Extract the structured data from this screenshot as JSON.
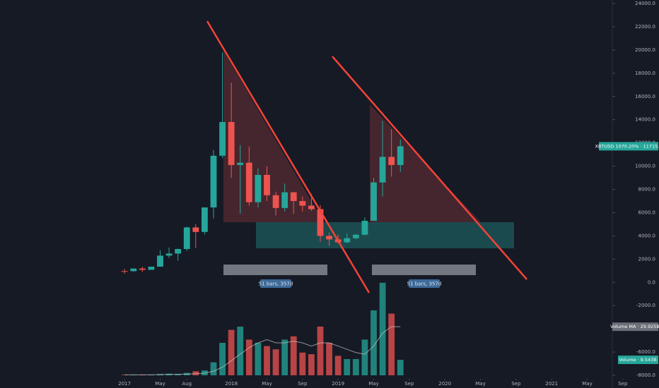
{
  "chart_data": {
    "type": "candlestick",
    "x": [
      "2017-01",
      "2017-02",
      "2017-03",
      "2017-04",
      "2017-05",
      "2017-06",
      "2017-07",
      "2017-08",
      "2017-09",
      "2017-10",
      "2017-11",
      "2017-12",
      "2018-01",
      "2018-02",
      "2018-03",
      "2018-04",
      "2018-05",
      "2018-06",
      "2018-07",
      "2018-08",
      "2018-09",
      "2018-10",
      "2018-11",
      "2018-12",
      "2019-01",
      "2019-02",
      "2019-03",
      "2019-04",
      "2019-05",
      "2019-06",
      "2019-07",
      "2019-08"
    ],
    "open": [
      970,
      965,
      1190,
      1080,
      1350,
      2300,
      2480,
      2870,
      4730,
      4340,
      6450,
      10900,
      13800,
      10100,
      10300,
      6900,
      9250,
      7500,
      6400,
      7750,
      7000,
      6600,
      6300,
      4000,
      3700,
      3450,
      3800,
      4100,
      5300,
      8600,
      10800,
      10100
    ],
    "high": [
      1150,
      1200,
      1350,
      1350,
      2760,
      3000,
      2900,
      4800,
      5000,
      6450,
      11400,
      19800,
      17200,
      11800,
      11700,
      9800,
      10000,
      7800,
      8500,
      7800,
      7400,
      7600,
      6650,
      4300,
      4100,
      4200,
      4150,
      5600,
      9000,
      13900,
      13200,
      12300
    ],
    "low": [
      750,
      920,
      890,
      1080,
      1350,
      2100,
      1850,
      2700,
      2950,
      4100,
      5500,
      10700,
      9000,
      5900,
      6600,
      6450,
      7000,
      5750,
      6100,
      5900,
      6100,
      6150,
      3500,
      3150,
      3350,
      3350,
      3700,
      4050,
      5300,
      7400,
      9100,
      9500
    ],
    "close": [
      965,
      1190,
      1080,
      1350,
      2300,
      2480,
      2870,
      4730,
      4340,
      6450,
      10900,
      13800,
      10100,
      10300,
      6900,
      9250,
      7500,
      6400,
      7750,
      7000,
      6600,
      6300,
      4000,
      3700,
      3450,
      3800,
      4100,
      5300,
      8600,
      10800,
      10100,
      11715.5
    ],
    "up_color": "#26a69a",
    "down_color": "#ef5350",
    "volume": {
      "name": "Volume",
      "label": "Volume · 9.543B",
      "values": [
        0.3,
        0.3,
        0.4,
        0.4,
        0.8,
        1.0,
        0.8,
        1.5,
        2.5,
        3,
        8,
        20,
        28,
        30,
        22,
        20,
        18,
        16,
        22,
        24,
        14,
        13,
        30,
        20,
        12,
        10,
        10,
        22,
        40,
        57,
        38,
        9.543
      ]
    },
    "volume_ma": {
      "name": "Volume MA",
      "label": "Volume MA · 29.925B",
      "color": "#c8c8c8",
      "values": [
        0.3,
        0.3,
        0.33,
        0.35,
        0.44,
        0.55,
        0.6,
        0.75,
        1.0,
        1.3,
        2.5,
        5,
        9,
        13,
        17,
        20,
        22,
        20,
        20,
        21,
        20,
        18,
        20,
        20,
        18,
        16,
        14,
        13,
        18,
        26,
        30,
        29.925
      ]
    },
    "volume_lim": [
      0,
      229
    ],
    "price_label": "XBTUSD 1070.20% · 11715.5",
    "annotations": [
      "51 bars, 357d",
      "51 bars, 357d"
    ],
    "xlim": [
      "2015-11",
      "2021-11"
    ],
    "xticks": [
      {
        "value": "2017-01",
        "label": "2017"
      },
      {
        "value": "2017-05",
        "label": "May"
      },
      {
        "value": "2017-08",
        "label": "Aug"
      },
      {
        "value": "2018-01",
        "label": "2018"
      },
      {
        "value": "2018-05",
        "label": "May"
      },
      {
        "value": "2018-09",
        "label": "Sep"
      },
      {
        "value": "2019-01",
        "label": "2019"
      },
      {
        "value": "2019-05",
        "label": "May"
      },
      {
        "value": "2019-09",
        "label": "Sep"
      },
      {
        "value": "2020-01",
        "label": "2020"
      },
      {
        "value": "2020-05",
        "label": "May"
      },
      {
        "value": "2020-09",
        "label": "Sep"
      },
      {
        "value": "2021-01",
        "label": "2021"
      },
      {
        "value": "2021-05",
        "label": "May"
      },
      {
        "value": "2021-09",
        "label": "Sep"
      }
    ],
    "ylim": [
      -8000,
      24000
    ],
    "yticks": [
      {
        "value": 24000,
        "label": "24000.0"
      },
      {
        "value": 22000,
        "label": "22000.0"
      },
      {
        "value": 20000,
        "label": "20000.0"
      },
      {
        "value": 18000,
        "label": "18000.0"
      },
      {
        "value": 16000,
        "label": "16000.0"
      },
      {
        "value": 14000,
        "label": "14000.0"
      },
      {
        "value": 12000,
        "label": "12000.0"
      },
      {
        "value": 10000,
        "label": "10000.0"
      },
      {
        "value": 8000,
        "label": "8000.0"
      },
      {
        "value": 6000,
        "label": "6000.0"
      },
      {
        "value": 4000,
        "label": "4000.0"
      },
      {
        "value": 2000,
        "label": "2000.0"
      },
      {
        "value": 0,
        "label": "0.0"
      },
      {
        "value": -2000,
        "label": "-2000.0"
      },
      {
        "value": -4000,
        "label": "-4000.0"
      },
      {
        "value": -6000,
        "label": "-6000.0"
      },
      {
        "value": -8000,
        "label": "-8000.0"
      }
    ]
  }
}
